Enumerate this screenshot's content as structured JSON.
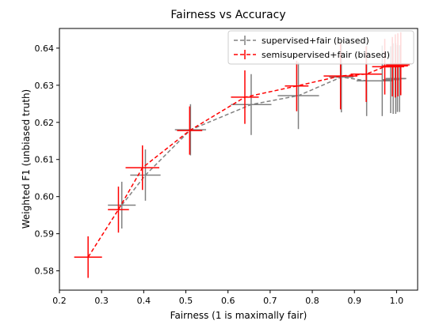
{
  "chart_data": {
    "type": "line",
    "title": "Fairness vs Accuracy",
    "xlabel": "Fairness (1 is maximally fair)",
    "ylabel": "Weighted F1 (unbiased truth)",
    "xlim": [
      0.2,
      1.05
    ],
    "ylim": [
      0.5748,
      0.6453
    ],
    "xticks": [
      0.2,
      0.3,
      0.4,
      0.5,
      0.6,
      0.7,
      0.8,
      0.9,
      1.0
    ],
    "xtick_labels": [
      "0.2",
      "0.3",
      "0.4",
      "0.5",
      "0.6",
      "0.7",
      "0.8",
      "0.9",
      "1.0"
    ],
    "yticks": [
      0.58,
      0.59,
      0.6,
      0.61,
      0.62,
      0.63,
      0.64
    ],
    "ytick_labels": [
      "0.58",
      "0.59",
      "0.60",
      "0.61",
      "0.62",
      "0.63",
      "0.64"
    ],
    "grid": false,
    "legend_position": "top-right",
    "series": [
      {
        "name": "supervised+fair (biased)",
        "color": "#808080",
        "points": [
          {
            "x": 0.348,
            "y": 0.5977,
            "xerr": 0.033,
            "yerr": 0.0063
          },
          {
            "x": 0.404,
            "y": 0.6058,
            "xerr": 0.036,
            "yerr": 0.0069
          },
          {
            "x": 0.511,
            "y": 0.618,
            "xerr": 0.037,
            "yerr": 0.0069
          },
          {
            "x": 0.655,
            "y": 0.6248,
            "xerr": 0.048,
            "yerr": 0.0082
          },
          {
            "x": 0.767,
            "y": 0.6272,
            "xerr": 0.049,
            "yerr": 0.009
          },
          {
            "x": 0.869,
            "y": 0.6322,
            "xerr": 0.029,
            "yerr": 0.0095
          },
          {
            "x": 0.929,
            "y": 0.6312,
            "xerr": 0.024,
            "yerr": 0.0095
          },
          {
            "x": 0.966,
            "y": 0.6312,
            "xerr": 0.026,
            "yerr": 0.0095
          },
          {
            "x": 0.986,
            "y": 0.6315,
            "xerr": 0.02,
            "yerr": 0.009
          },
          {
            "x": 0.992,
            "y": 0.6318,
            "xerr": 0.018,
            "yerr": 0.0095
          },
          {
            "x": 0.998,
            "y": 0.6318,
            "xerr": 0.022,
            "yerr": 0.0095
          },
          {
            "x": 1.002,
            "y": 0.6318,
            "xerr": 0.02,
            "yerr": 0.009
          },
          {
            "x": 1.007,
            "y": 0.6318,
            "xerr": 0.016,
            "yerr": 0.009
          }
        ]
      },
      {
        "name": "semisupervised+fair (biased)",
        "color": "#ff0000",
        "points": [
          {
            "x": 0.268,
            "y": 0.5837,
            "xerr": 0.033,
            "yerr": 0.0056
          },
          {
            "x": 0.34,
            "y": 0.5965,
            "xerr": 0.025,
            "yerr": 0.0062
          },
          {
            "x": 0.397,
            "y": 0.6078,
            "xerr": 0.04,
            "yerr": 0.006
          },
          {
            "x": 0.509,
            "y": 0.6178,
            "xerr": 0.03,
            "yerr": 0.0065
          },
          {
            "x": 0.64,
            "y": 0.6268,
            "xerr": 0.033,
            "yerr": 0.0072
          },
          {
            "x": 0.763,
            "y": 0.6298,
            "xerr": 0.028,
            "yerr": 0.0068
          },
          {
            "x": 0.867,
            "y": 0.6325,
            "xerr": 0.04,
            "yerr": 0.009
          },
          {
            "x": 0.928,
            "y": 0.633,
            "xerr": 0.037,
            "yerr": 0.0075
          },
          {
            "x": 0.972,
            "y": 0.635,
            "xerr": 0.03,
            "yerr": 0.0075
          },
          {
            "x": 0.99,
            "y": 0.635,
            "xerr": 0.028,
            "yerr": 0.008
          },
          {
            "x": 0.997,
            "y": 0.6352,
            "xerr": 0.03,
            "yerr": 0.0085
          },
          {
            "x": 1.003,
            "y": 0.6355,
            "xerr": 0.028,
            "yerr": 0.0085
          },
          {
            "x": 1.01,
            "y": 0.6358,
            "xerr": 0.025,
            "yerr": 0.0085
          }
        ]
      }
    ]
  }
}
